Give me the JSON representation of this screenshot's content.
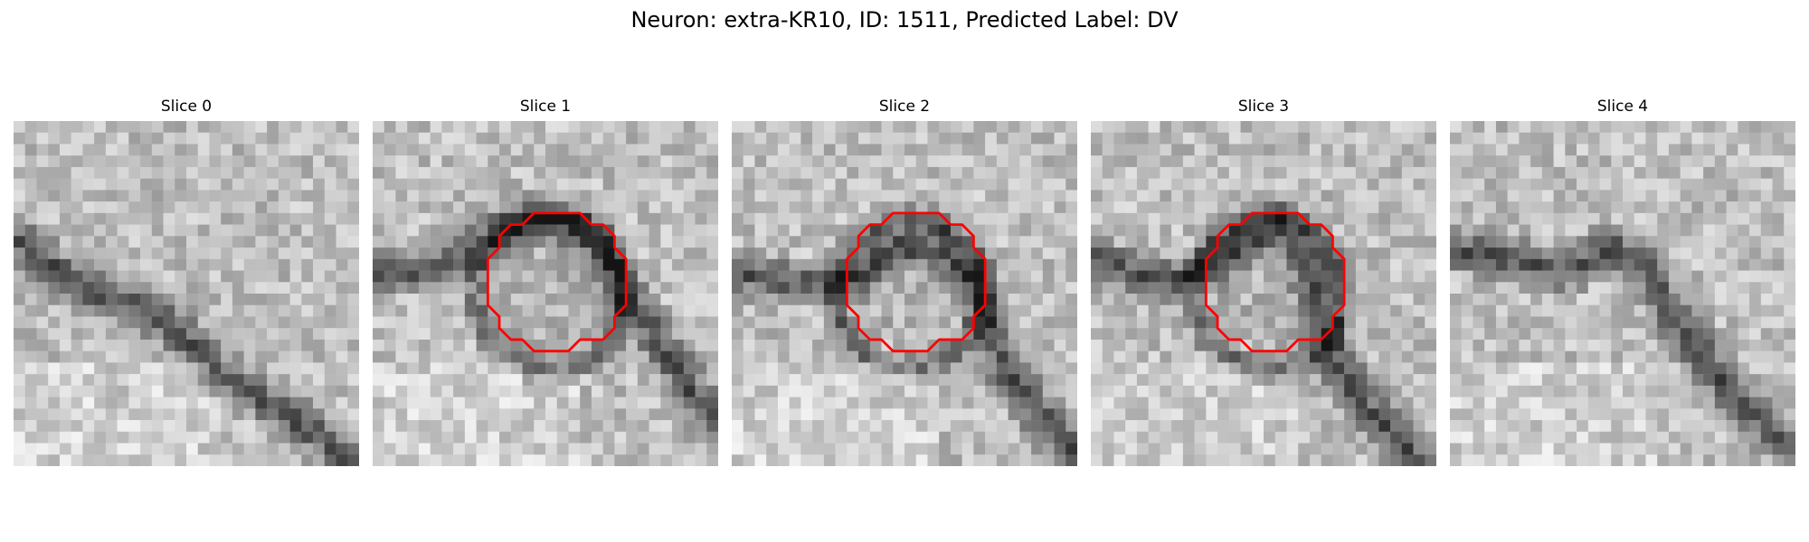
{
  "figure": {
    "title": "Neuron: extra-KR10, ID: 1511, Predicted Label: DV"
  },
  "colors": {
    "background": "#ffffff",
    "contour": "#ff0000"
  },
  "panels": [
    {
      "title": "Slice 0",
      "has_contour": false
    },
    {
      "title": "Slice 1",
      "has_contour": true
    },
    {
      "title": "Slice 2",
      "has_contour": true
    },
    {
      "title": "Slice 3",
      "has_contour": true
    },
    {
      "title": "Slice 4",
      "has_contour": false
    }
  ]
}
